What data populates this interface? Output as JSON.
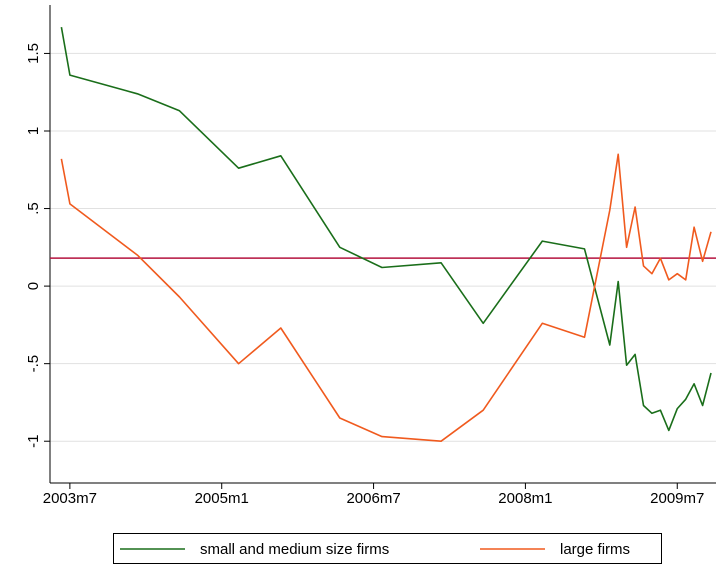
{
  "chart_data": {
    "type": "line",
    "x": [
      "2003m6",
      "2003m7",
      "2004m3",
      "2004m8",
      "2005m3",
      "2005m8",
      "2006m3",
      "2006m8",
      "2007m3",
      "2007m8",
      "2008m3",
      "2008m8",
      "2008m11",
      "2008m12",
      "2009m1",
      "2009m2",
      "2009m3",
      "2009m4",
      "2009m5",
      "2009m6",
      "2009m7",
      "2009m8",
      "2009m9",
      "2009m10",
      "2009m11"
    ],
    "series": [
      {
        "name": "small and medium size firms",
        "color": "#1a6e1a",
        "values": [
          1.67,
          1.36,
          1.24,
          1.13,
          0.76,
          0.84,
          0.25,
          0.12,
          0.15,
          -0.24,
          0.29,
          0.24,
          -0.38,
          0.03,
          -0.51,
          -0.44,
          -0.77,
          -0.82,
          -0.8,
          -0.93,
          -0.79,
          -0.73,
          -0.63,
          -0.77,
          -0.56
        ]
      },
      {
        "name": "large firms",
        "color": "#f05a1e",
        "values": [
          0.82,
          0.53,
          0.2,
          -0.07,
          -0.5,
          -0.27,
          -0.85,
          -0.97,
          -1.0,
          -0.8,
          -0.24,
          -0.33,
          0.49,
          0.85,
          0.25,
          0.51,
          0.13,
          0.08,
          0.18,
          0.04,
          0.08,
          0.04,
          0.38,
          0.16,
          0.35
        ]
      }
    ],
    "xlim": [
      "2003m5",
      "2009m11"
    ],
    "xticks": [
      "2003m7",
      "2005m1",
      "2006m7",
      "2008m1",
      "2009m7"
    ],
    "ylim": [
      -1.25,
      1.78
    ],
    "yticks": [
      -1,
      {
        "value": -0.5,
        "label": "-.5"
      },
      0,
      {
        "value": 0.5,
        "label": ".5"
      },
      1,
      1.5
    ],
    "reference_line": {
      "value": 0.18,
      "color": "#b5123e"
    },
    "grid": true,
    "legend": "bottom"
  }
}
